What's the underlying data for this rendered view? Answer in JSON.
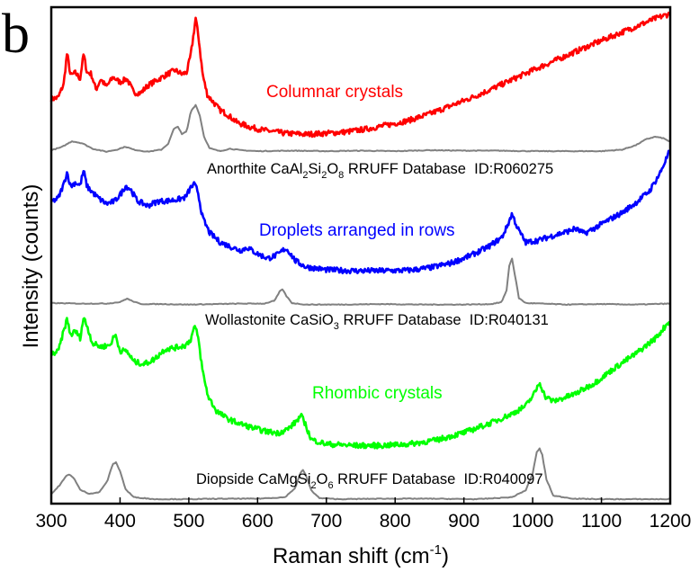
{
  "chart_data": {
    "type": "line",
    "panel_label": "b",
    "xlabel": "Raman shift (cm",
    "xlabel_sup": "-1",
    "xlabel_close": ")",
    "ylabel": "Intensity (counts)",
    "xlim": [
      300,
      1200
    ],
    "ylim": [
      0,
      100
    ],
    "y_units": "arbitrary offset intensity (stacked spectra, no y tick labels)",
    "x_ticks": [
      300,
      400,
      500,
      600,
      700,
      800,
      900,
      1000,
      1100,
      1200
    ],
    "x_tick_labels": [
      "300",
      "400",
      "500",
      "600",
      "700",
      "800",
      "900",
      "1000",
      "1100",
      "1200"
    ],
    "grid": false,
    "series": [
      {
        "name": "Columnar crystals",
        "color": "#ff0000",
        "kind": "measured",
        "x": [
          300,
          310,
          318,
          323,
          328,
          335,
          342,
          347,
          352,
          358,
          365,
          372,
          380,
          390,
          400,
          410,
          420,
          430,
          440,
          450,
          460,
          470,
          480,
          490,
          497,
          503,
          510,
          515,
          520,
          527,
          535,
          545,
          555,
          570,
          590,
          610,
          640,
          670,
          700,
          730,
          760,
          790,
          820,
          850,
          880,
          910,
          940,
          970,
          1000,
          1030,
          1060,
          1090,
          1120,
          1150,
          1180,
          1200
        ],
        "y": [
          81.5,
          81.8,
          84.5,
          90.8,
          86.2,
          86.8,
          85.6,
          90.6,
          86.8,
          86.6,
          83.4,
          85.5,
          84.0,
          85.9,
          84.9,
          85.6,
          82.8,
          82.7,
          84.2,
          85.0,
          85.8,
          86.6,
          87.3,
          86.5,
          86.9,
          90.5,
          97.8,
          93.0,
          86.5,
          82.3,
          81.0,
          79.3,
          78.5,
          76.8,
          75.8,
          75.2,
          74.6,
          74.4,
          74.6,
          74.9,
          75.5,
          76.3,
          77.2,
          78.5,
          80.1,
          81.7,
          83.5,
          85.4,
          87.3,
          89.1,
          90.9,
          92.7,
          94.4,
          96.1,
          97.8,
          98.7
        ]
      },
      {
        "name": "Anorthite CaAl2Si2O8 RRUFF Database ID:R060275",
        "color": "#808080",
        "kind": "reference",
        "x": [
          300,
          315,
          330,
          345,
          360,
          380,
          395,
          408,
          420,
          440,
          460,
          470,
          478,
          484,
          490,
          497,
          503,
          510,
          516,
          522,
          530,
          545,
          560,
          575,
          600,
          650,
          700,
          750,
          800,
          850,
          900,
          950,
          1000,
          1050,
          1100,
          1130,
          1150,
          1165,
          1178,
          1190,
          1200
        ],
        "y": [
          71.2,
          71.8,
          73.0,
          72.6,
          71.5,
          70.9,
          71.3,
          71.9,
          71.3,
          70.9,
          71.3,
          72.5,
          75.4,
          76.0,
          74.4,
          75.0,
          79.1,
          80.3,
          78.2,
          74.0,
          71.6,
          71.0,
          71.5,
          71.2,
          71.0,
          71.1,
          71.0,
          71.1,
          71.0,
          71.2,
          71.1,
          71.1,
          71.0,
          71.0,
          71.0,
          71.3,
          72.2,
          73.4,
          73.9,
          73.6,
          72.9
        ]
      },
      {
        "name": "Droplets arranged in rows",
        "color": "#0000ff",
        "kind": "measured",
        "x": [
          300,
          310,
          318,
          323,
          328,
          335,
          342,
          347,
          352,
          358,
          368,
          380,
          392,
          402,
          408,
          415,
          425,
          440,
          455,
          470,
          485,
          495,
          503,
          508,
          513,
          520,
          530,
          545,
          560,
          575,
          585,
          600,
          615,
          630,
          640,
          645,
          655,
          670,
          700,
          740,
          780,
          820,
          850,
          880,
          910,
          935,
          955,
          963,
          970,
          978,
          990,
          1010,
          1030,
          1050,
          1062,
          1075,
          1090,
          1110,
          1130,
          1150,
          1170,
          1185,
          1200
        ],
        "y": [
          60.8,
          61.5,
          64.3,
          66.8,
          63.9,
          64.7,
          64.1,
          67.1,
          63.9,
          63.0,
          61.6,
          60.4,
          60.9,
          62.6,
          64.0,
          63.4,
          61.0,
          60.0,
          60.9,
          61.0,
          61.3,
          61.7,
          63.7,
          64.3,
          63.0,
          57.6,
          54.6,
          52.7,
          51.8,
          51.0,
          51.6,
          50.3,
          49.4,
          50.2,
          51.4,
          50.9,
          48.9,
          47.7,
          47.1,
          46.9,
          46.9,
          47.0,
          47.5,
          48.4,
          50.0,
          51.7,
          53.6,
          55.9,
          58.4,
          55.5,
          52.6,
          53.1,
          54.0,
          54.8,
          55.4,
          54.4,
          55.5,
          57.1,
          58.6,
          60.6,
          63.0,
          66.5,
          71.3
        ]
      },
      {
        "name": "Wollastonite CaSiO3 RRUFF Database ID:R040131",
        "color": "#808080",
        "kind": "reference",
        "x": [
          300,
          340,
          380,
          400,
          410,
          418,
          430,
          460,
          500,
          540,
          580,
          610,
          625,
          632,
          636,
          642,
          650,
          670,
          720,
          780,
          840,
          900,
          940,
          955,
          962,
          966,
          970,
          974,
          980,
          990,
          1010,
          1050,
          1100,
          1150,
          1200
        ],
        "y": [
          40.4,
          40.3,
          40.3,
          40.6,
          41.3,
          40.8,
          40.2,
          40.2,
          40.1,
          40.2,
          40.3,
          40.3,
          40.9,
          42.7,
          43.2,
          41.8,
          40.4,
          40.1,
          40.1,
          40.2,
          40.1,
          40.1,
          40.2,
          40.6,
          43.0,
          47.9,
          49.4,
          46.2,
          41.4,
          40.4,
          40.3,
          40.1,
          40.2,
          40.1,
          40.3
        ]
      },
      {
        "name": "Rhombic crystals",
        "color": "#00ff00",
        "kind": "measured",
        "x": [
          300,
          310,
          318,
          323,
          328,
          335,
          342,
          347,
          352,
          360,
          372,
          385,
          393,
          400,
          410,
          420,
          435,
          450,
          465,
          480,
          495,
          503,
          508,
          513,
          520,
          528,
          540,
          555,
          570,
          590,
          610,
          630,
          645,
          655,
          663,
          668,
          678,
          700,
          740,
          780,
          820,
          860,
          900,
          940,
          970,
          990,
          1003,
          1010,
          1018,
          1030,
          1060,
          1090,
          1120,
          1150,
          1180,
          1200
        ],
        "y": [
          30.1,
          30.6,
          34.7,
          37.2,
          33.9,
          34.8,
          33.4,
          37.5,
          35.8,
          32.3,
          31.6,
          31.9,
          34.1,
          30.8,
          30.7,
          28.6,
          28.1,
          29.1,
          31.1,
          31.4,
          31.9,
          33.1,
          35.7,
          34.0,
          26.7,
          21.6,
          18.7,
          17.2,
          16.3,
          15.4,
          14.6,
          14.2,
          15.1,
          16.4,
          17.7,
          16.5,
          12.9,
          12.0,
          11.7,
          11.7,
          12.0,
          12.8,
          14.3,
          16.3,
          18.1,
          19.7,
          22.3,
          24.5,
          21.6,
          20.6,
          22.0,
          24.3,
          27.4,
          30.2,
          33.5,
          37.0
        ]
      },
      {
        "name": "Diopside CaMgSi2O6 RRUFF Database ID:R040097",
        "color": "#808080",
        "kind": "reference",
        "x": [
          300,
          312,
          322,
          327,
          333,
          342,
          355,
          370,
          382,
          389,
          394,
          400,
          408,
          420,
          450,
          500,
          550,
          600,
          640,
          655,
          662,
          666,
          670,
          678,
          690,
          720,
          780,
          850,
          920,
          970,
          990,
          1000,
          1006,
          1010,
          1014,
          1020,
          1030,
          1060,
          1100,
          1150,
          1200
        ],
        "y": [
          1.9,
          3.7,
          5.6,
          5.9,
          5.1,
          2.8,
          2.0,
          2.3,
          4.7,
          7.9,
          8.3,
          6.6,
          2.9,
          1.3,
          0.9,
          0.9,
          1.0,
          1.0,
          1.3,
          3.2,
          6.1,
          6.8,
          5.8,
          2.7,
          1.1,
          0.9,
          1.0,
          1.0,
          0.9,
          1.3,
          2.7,
          6.1,
          10.4,
          11.1,
          9.8,
          4.9,
          1.6,
          1.0,
          0.9,
          0.9,
          0.9
        ]
      }
    ],
    "annotations": {
      "columnar": "Columnar crystals",
      "droplets": "Droplets arranged in rows",
      "rhombic": "Rhombic crystals",
      "anorthite": {
        "mineral": "Anorthite ",
        "f1": "CaAl",
        "s1": "2",
        "f2": "Si",
        "s2": "2",
        "f3": "O",
        "s3": "8",
        "tail": " RRUFF Database  ID:R060275"
      },
      "wollastonite": {
        "mineral": "Wollastonite ",
        "f1": "CaSiO",
        "s1": "3",
        "tail": " RRUFF Database  ID:R040131"
      },
      "diopside": {
        "mineral": "Diopside ",
        "f1": "CaMgSi",
        "s1": "2",
        "f2": "O",
        "s2": "6",
        "tail": " RRUFF Database  ID:R040097"
      }
    }
  }
}
